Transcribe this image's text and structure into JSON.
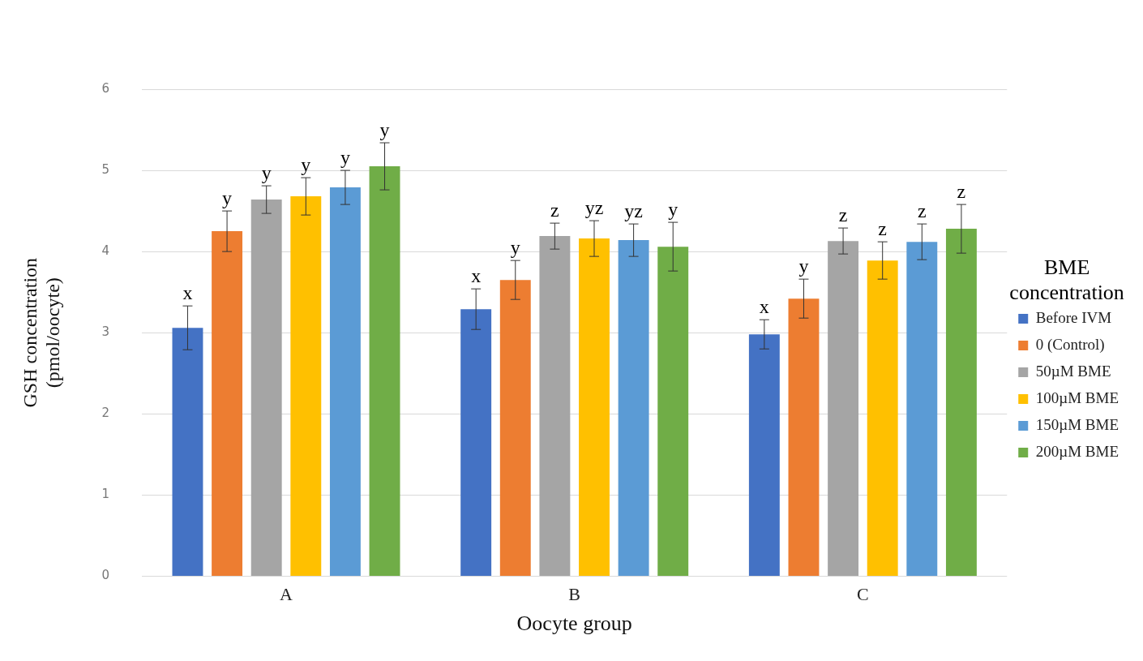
{
  "chart_data": {
    "type": "bar",
    "xlabel": "Oocyte group",
    "ylabel": "GSH concentration\n(pmol/oocyte)",
    "legend_title": "BME\nconcentration",
    "categories": [
      "A",
      "B",
      "C"
    ],
    "series": [
      {
        "name": "Before IVM",
        "color": "#4472c4",
        "values": [
          3.06,
          3.29,
          2.98
        ],
        "errors": [
          0.27,
          0.25,
          0.18
        ],
        "value_labels": [
          "x",
          "x",
          "x"
        ]
      },
      {
        "name": "0 (Control)",
        "color": "#ed7d31",
        "values": [
          4.25,
          3.65,
          3.42
        ],
        "errors": [
          0.25,
          0.24,
          0.24
        ],
        "value_labels": [
          "y",
          "y",
          "y"
        ]
      },
      {
        "name": "50µM BME",
        "color": "#a5a5a5",
        "values": [
          4.64,
          4.19,
          4.13
        ],
        "errors": [
          0.17,
          0.16,
          0.16
        ],
        "value_labels": [
          "y",
          "z",
          "z"
        ]
      },
      {
        "name": "100µM BME",
        "color": "#ffc000",
        "values": [
          4.68,
          4.16,
          3.89
        ],
        "errors": [
          0.23,
          0.22,
          0.23
        ],
        "value_labels": [
          "y",
          "yz",
          "z"
        ]
      },
      {
        "name": "150µM BME",
        "color": "#5b9bd5",
        "values": [
          4.79,
          4.14,
          4.12
        ],
        "errors": [
          0.21,
          0.2,
          0.22
        ],
        "value_labels": [
          "y",
          "yz",
          "z"
        ]
      },
      {
        "name": "200µM BME",
        "color": "#70ad47",
        "values": [
          5.05,
          4.06,
          4.28
        ],
        "errors": [
          0.29,
          0.3,
          0.3
        ],
        "value_labels": [
          "y",
          "y",
          "z"
        ]
      }
    ],
    "ylim": [
      0,
      6
    ],
    "yticks": [
      0,
      1,
      2,
      3,
      4,
      5,
      6
    ],
    "grid": "y",
    "legend": "right"
  }
}
